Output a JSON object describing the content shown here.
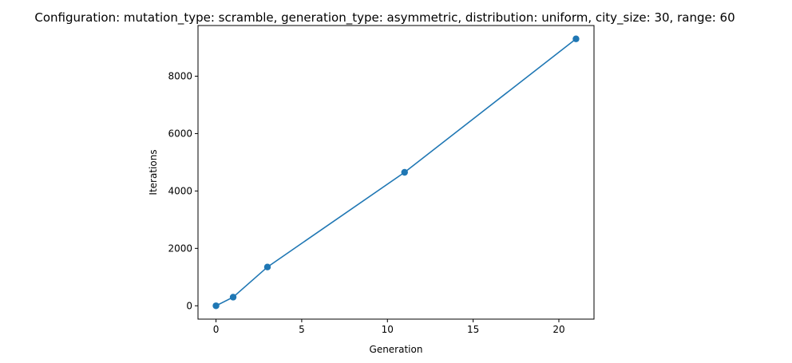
{
  "chart_data": {
    "type": "line",
    "title": "Configuration: mutation_type: scramble, generation_type: asymmetric, distribution: uniform, city_size: 30, range: 60",
    "xlabel": "Generation",
    "ylabel": "Iterations",
    "x": [
      0,
      1,
      3,
      11,
      21
    ],
    "series": [
      {
        "values": [
          0,
          300,
          1350,
          4650,
          9300
        ]
      }
    ],
    "xlim": [
      -1.05,
      22.05
    ],
    "ylim": [
      -465,
      9765
    ],
    "xticks": [
      "0",
      "5",
      "10",
      "15",
      "20"
    ],
    "yticks": [
      "0",
      "2000",
      "4000",
      "6000",
      "8000"
    ],
    "grid": false,
    "legend": "none",
    "colors": {
      "series": "#1f77b4",
      "axis": "#000000"
    }
  }
}
